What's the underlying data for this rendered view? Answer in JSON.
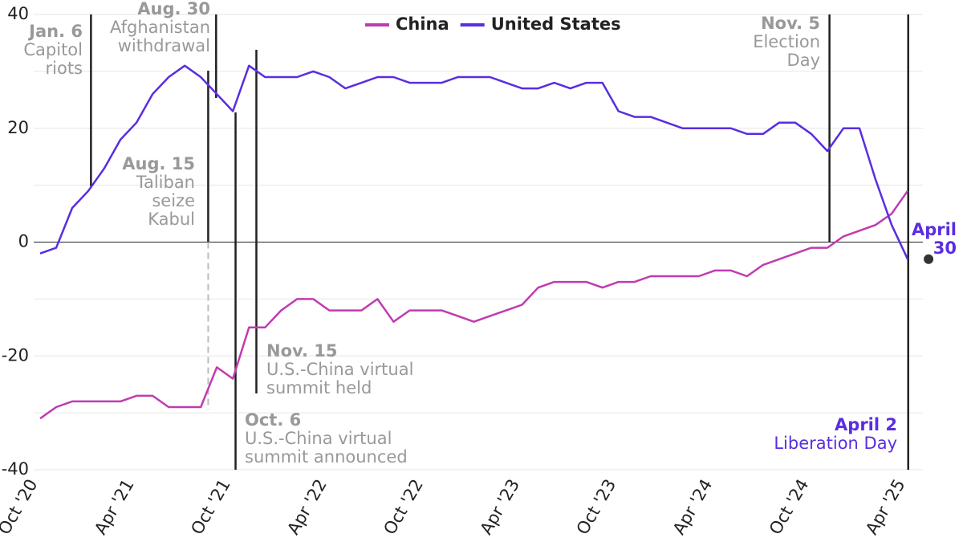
{
  "chart_data": {
    "type": "line",
    "x": [
      "2020-10",
      "2020-11",
      "2020-12",
      "2021-01",
      "2021-02",
      "2021-03",
      "2021-04",
      "2021-05",
      "2021-06",
      "2021-07",
      "2021-08",
      "2021-09",
      "2021-10",
      "2021-11",
      "2021-12",
      "2022-01",
      "2022-02",
      "2022-03",
      "2022-04",
      "2022-05",
      "2022-06",
      "2022-07",
      "2022-08",
      "2022-09",
      "2022-10",
      "2022-11",
      "2022-12",
      "2023-01",
      "2023-02",
      "2023-03",
      "2023-04",
      "2023-05",
      "2023-06",
      "2023-07",
      "2023-08",
      "2023-09",
      "2023-10",
      "2023-11",
      "2023-12",
      "2024-01",
      "2024-02",
      "2024-03",
      "2024-04",
      "2024-05",
      "2024-06",
      "2024-07",
      "2024-08",
      "2024-09",
      "2024-10",
      "2024-11",
      "2024-12",
      "2025-01",
      "2025-02",
      "2025-03",
      "2025-04"
    ],
    "series": [
      {
        "name": "China",
        "color": "#c03bb0",
        "values": [
          -31,
          -29,
          -28,
          -28,
          -28,
          -28,
          -27,
          -27,
          -29,
          -29,
          -29,
          -22,
          -24,
          -15,
          -15,
          -12,
          -10,
          -10,
          -12,
          -12,
          -12,
          -10,
          -14,
          -12,
          -12,
          -12,
          -13,
          -14,
          -13,
          -12,
          -11,
          -8,
          -7,
          -7,
          -7,
          -8,
          -7,
          -7,
          -6,
          -6,
          -6,
          -6,
          -5,
          -5,
          -6,
          -4,
          -3,
          -2,
          -1,
          -1,
          1,
          2,
          3,
          5,
          9
        ]
      },
      {
        "name": "United States",
        "color": "#5a2de0",
        "values": [
          -2,
          -1,
          6,
          9,
          13,
          18,
          21,
          26,
          29,
          31,
          29,
          26,
          23,
          31,
          29,
          29,
          29,
          30,
          29,
          27,
          28,
          29,
          29,
          28,
          28,
          28,
          29,
          29,
          29,
          28,
          27,
          27,
          28,
          27,
          28,
          28,
          23,
          22,
          22,
          21,
          20,
          20,
          20,
          20,
          19,
          19,
          21,
          21,
          19,
          16,
          20,
          20,
          11,
          3,
          -3
        ]
      }
    ],
    "ylim": [
      -40,
      40
    ],
    "yticks": [
      -40,
      -20,
      0,
      20,
      40
    ],
    "minor_yticks": [
      -30,
      -10,
      10,
      30
    ],
    "xticks": [
      {
        "value": "2020-10",
        "label": "Oct '20"
      },
      {
        "value": "2021-04",
        "label": "Apr '21"
      },
      {
        "value": "2021-10",
        "label": "Oct '21"
      },
      {
        "value": "2022-04",
        "label": "Apr '22"
      },
      {
        "value": "2022-10",
        "label": "Oct '22"
      },
      {
        "value": "2023-04",
        "label": "Apr '23"
      },
      {
        "value": "2023-10",
        "label": "Oct '23"
      },
      {
        "value": "2024-04",
        "label": "Apr '24"
      },
      {
        "value": "2024-10",
        "label": "Oct '24"
      },
      {
        "value": "2025-04",
        "label": "Apr '25"
      }
    ],
    "grid": true,
    "legend": "top",
    "annotations": [
      {
        "x": "2021-01-06",
        "date": "Jan. 6",
        "lines": [
          "Capitol",
          "riots"
        ]
      },
      {
        "x": "2021-08-30",
        "date": "Aug. 30",
        "lines": [
          "Afghanistan",
          "withdrawal"
        ]
      },
      {
        "x": "2021-08-15",
        "date": "Aug. 15",
        "lines": [
          "Taliban",
          "seize",
          "Kabul"
        ]
      },
      {
        "x": "2021-10-06",
        "date": "Oct. 6",
        "lines": [
          "U.S.-China virtual",
          "summit announced"
        ]
      },
      {
        "x": "2021-11-15",
        "date": "Nov. 15",
        "lines": [
          "U.S.-China virtual",
          "summit held"
        ]
      },
      {
        "x": "2024-11-05",
        "date": "Nov. 5",
        "lines": [
          "Election",
          "Day"
        ]
      },
      {
        "x": "2025-04-02",
        "date": "April 2",
        "lines": [
          "Liberation Day"
        ]
      },
      {
        "x": "2025-04-30",
        "date": "April",
        "lines": [
          "30"
        ]
      }
    ]
  }
}
